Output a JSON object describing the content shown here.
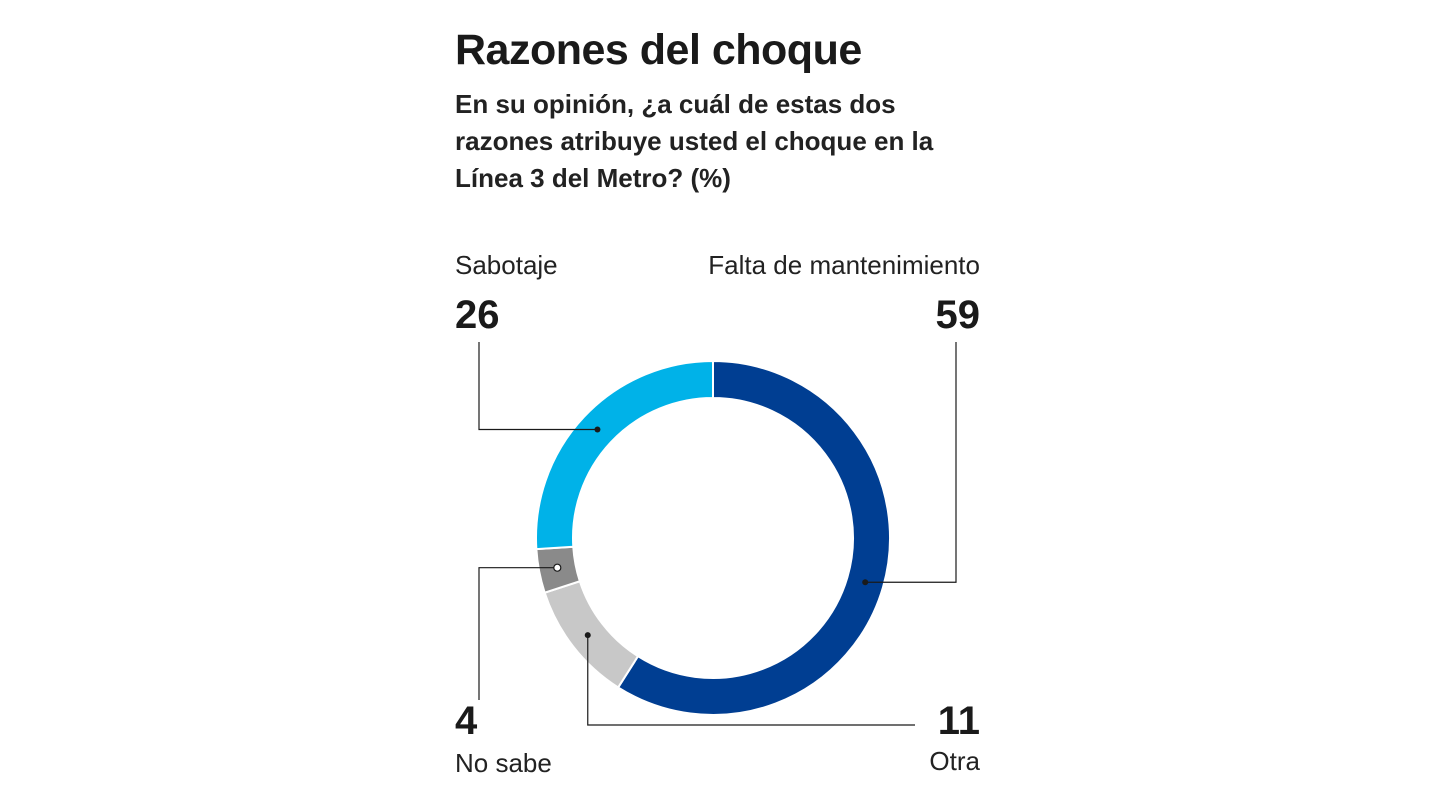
{
  "title": "Razones del choque",
  "subtitle": "En su opinión, ¿a cuál de estas dos razones atribuye usted el choque en la Línea 3 del Metro? (%)",
  "chart_data": {
    "type": "pie",
    "variant": "donut",
    "title": "Razones del choque",
    "subtitle": "En su opinión, ¿a cuál de estas dos razones atribuye usted el choque en la Línea 3 del Metro? (%)",
    "unit": "%",
    "slices": [
      {
        "label": "Falta de mantenimiento",
        "value": 59,
        "display": "59",
        "color": "#003e92"
      },
      {
        "label": "Otra",
        "value": 11,
        "display": "11",
        "color": "#c8c8c8"
      },
      {
        "label": "No sabe",
        "value": 4,
        "display": "4",
        "color": "#8a8a8a"
      },
      {
        "label": "Sabotaje",
        "value": 26,
        "display": "26",
        "color": "#00b2e8"
      }
    ],
    "start": "top",
    "direction": "clockwise"
  }
}
